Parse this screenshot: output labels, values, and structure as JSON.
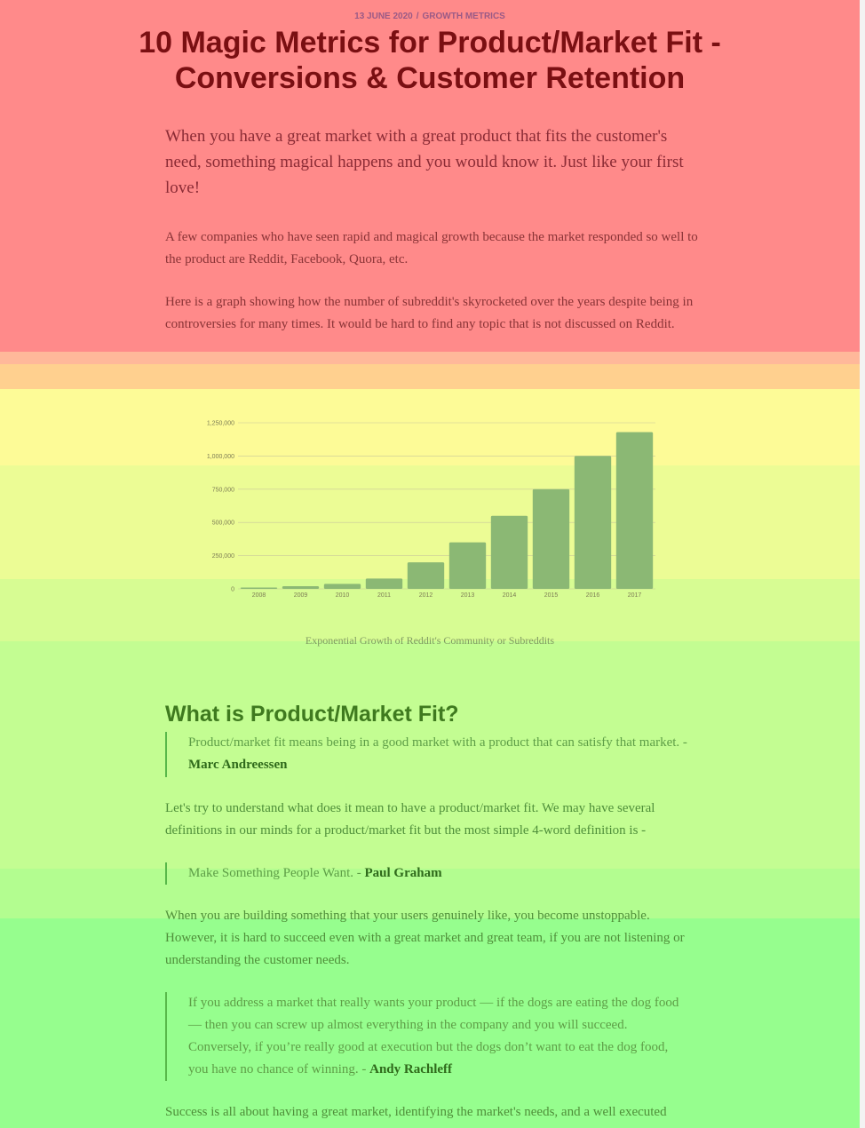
{
  "header": {
    "date": "13 JUNE 2020",
    "separator": "/",
    "category": "GROWTH METRICS",
    "title": "10 Magic Metrics for Product/Market Fit - Conversions & Customer Retention"
  },
  "body": {
    "lead": "When you have a great market with a great product that fits the customer's need, something magical happens and you would know it. Just like your first love!",
    "p1": "A few companies who have seen rapid and magical growth because the market responded so well to the product are Reddit, Facebook, Quora, etc.",
    "p2": "Here is a graph showing how the number of subreddit's skyrocketed over the years despite being in controversies for many times. It would be hard to find any topic that is not discussed on Reddit.",
    "figure_caption": "Exponential Growth of Reddit's Community or Subreddits",
    "section_heading": "What is Product/Market Fit?",
    "quote1_text": "Product/market fit means being in a good market with a product that can satisfy that market. - ",
    "quote1_author": "Marc Andreessen",
    "p3": "Let's try to understand what does it mean to have a product/market fit. We may have several definitions in our minds for a product/market fit but the most simple 4-word definition is -",
    "quote2_text": "Make Something People Want. - ",
    "quote2_author": "Paul Graham",
    "p4": "When you are building something that your users genuinely like, you become unstoppable. However, it is hard to succeed even with a great market and great team, if you are not listening or understanding the customer needs.",
    "quote3_text": "If you address a market that really wants your product — if the dogs are eating the dog food — then you can screw up almost everything in the company and you will succeed. Conversely, if you’re really good at execution but the dogs don’t want to eat the dog food, you have no chance of winning. - ",
    "quote3_author": "Andy Rachleff",
    "p5": "Success is all about having a great market, identifying the market's needs, and a well executed"
  },
  "heatmap": {
    "bands": [
      "#ff8a8a",
      "#ffb89a",
      "#ffd08f",
      "#fdfb97",
      "#ecfc95",
      "#d7fc93",
      "#c3fd92",
      "#b3fd90",
      "#96fe8e"
    ]
  },
  "chart_data": {
    "type": "bar",
    "categories": [
      "2008",
      "2009",
      "2010",
      "2011",
      "2012",
      "2013",
      "2014",
      "2015",
      "2016",
      "2017"
    ],
    "values": [
      10000,
      20000,
      38000,
      78000,
      200000,
      350000,
      550000,
      750000,
      1000000,
      1180000
    ],
    "ylim": [
      0,
      1250000
    ],
    "yticks": [
      0,
      250000,
      500000,
      750000,
      1000000,
      1250000
    ],
    "ytick_labels": [
      "0",
      "250,000",
      "500,000",
      "750,000",
      "1,000,000",
      "1,250,000"
    ],
    "grid": true,
    "bar_color": "#8bb874",
    "title": "",
    "xlabel": "",
    "ylabel": ""
  }
}
